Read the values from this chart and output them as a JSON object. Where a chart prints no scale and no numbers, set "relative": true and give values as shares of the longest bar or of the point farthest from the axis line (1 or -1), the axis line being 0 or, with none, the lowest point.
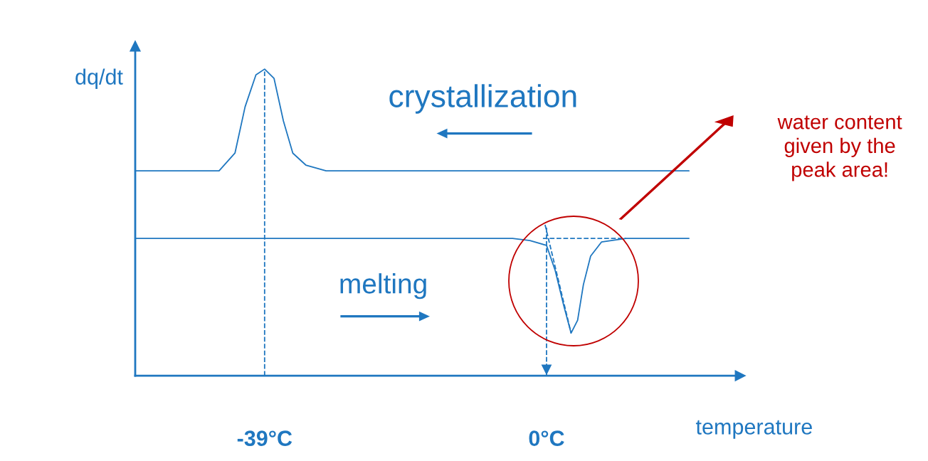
{
  "chart_data": {
    "type": "line",
    "relative": true,
    "xlabel": "temperature",
    "ylabel": "dq/dt",
    "xlim": [
      -56.9,
      26.8
    ],
    "xticks": [
      {
        "value": -39,
        "label": "-39°C"
      },
      {
        "value": 0,
        "label": "0°C"
      }
    ],
    "grid": false,
    "legend": false,
    "marker": "none",
    "tick_labels": "x",
    "series": [
      {
        "color": "#1f77c0",
        "line_style": "solid",
        "x": [
          -56.9,
          -45.3,
          -43.1,
          -41.7,
          -40.2,
          -39,
          -37.7,
          -36.4,
          -35.1,
          -33.3,
          -30.5,
          19.7
        ],
        "values": [
          0.668,
          0.668,
          0.726,
          0.877,
          0.981,
          1,
          0.97,
          0.831,
          0.726,
          0.687,
          0.668,
          0.668
        ]
      },
      {
        "color": "#1f77c0",
        "line_style": "solid",
        "x": [
          -56.9,
          -4.7,
          -2.3,
          0,
          1.2,
          2.4,
          3.4,
          4.3,
          5.1,
          6.1,
          7.6,
          11.0,
          19.7
        ],
        "values": [
          0.448,
          0.448,
          0.441,
          0.425,
          0.343,
          0.227,
          0.139,
          0.181,
          0.297,
          0.39,
          0.436,
          0.448,
          0.448
        ]
      },
      {
        "color": "#1f77c0",
        "line_style": "dashed",
        "x": [
          -39,
          -39
        ],
        "values": [
          0,
          1
        ]
      },
      {
        "color": "#1f77c0",
        "line_style": "dashed",
        "x": [
          0,
          0
        ],
        "values": [
          0.483,
          0
        ]
      },
      {
        "color": "#1f77c0",
        "line_style": "dashed",
        "x": [
          -0.5,
          11.0
        ],
        "values": [
          0.448,
          0.448
        ]
      },
      {
        "color": "#1f77c0",
        "line_style": "dashed",
        "x": [
          -0.2,
          3.4
        ],
        "values": [
          0.492,
          0.139
        ]
      }
    ],
    "annotations": [
      "crystallization",
      "melting",
      "water content\ngiven by the\npeak area!"
    ]
  }
}
